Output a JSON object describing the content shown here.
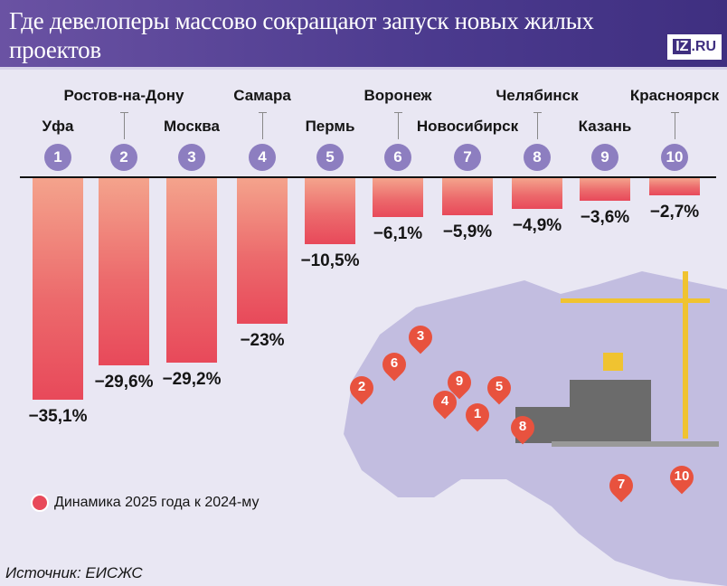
{
  "header": {
    "title": "Где девелоперы массово сокращают запуск новых жилых проектов",
    "logo": {
      "mark": "IZ",
      "suffix": ".RU"
    }
  },
  "legend": {
    "label": "Динамика 2025 года к 2024-му",
    "color": "#e8495a"
  },
  "source": "Источник: ЕИСЖС",
  "colors": {
    "header_bg": "#4b3a8e",
    "bar": "#e8495a",
    "badge": "#8d7ec0",
    "pin": "#e8523e",
    "background": "#e9e7f3"
  },
  "chart_data": {
    "type": "bar",
    "title": "Где девелоперы массово сокращают запуск новых жилых проектов",
    "categories": [
      "Уфа",
      "Ростов-на-Дону",
      "Москва",
      "Самара",
      "Пермь",
      "Воронеж",
      "Новосибирск",
      "Челябинск",
      "Казань",
      "Красноярск"
    ],
    "ranks": [
      "1",
      "2",
      "3",
      "4",
      "5",
      "6",
      "7",
      "8",
      "9",
      "10"
    ],
    "values": [
      -35.1,
      -29.6,
      -29.2,
      -23,
      -10.5,
      -6.1,
      -5.9,
      -4.9,
      -3.6,
      -2.7
    ],
    "labels": [
      "−35,1%",
      "−29,6%",
      "−29,2%",
      "−23%",
      "−10,5%",
      "−6,1%",
      "−5,9%",
      "−4,9%",
      "−3,6%",
      "−2,7%"
    ],
    "series_name": "Динамика 2025 года к 2024-му",
    "xlabel": "",
    "ylabel": "%",
    "ylim": [
      -36,
      0
    ],
    "grid": false,
    "legend_position": "bottom-left"
  },
  "map_pins": [
    "3",
    "6",
    "2",
    "9",
    "4",
    "5",
    "1",
    "8",
    "7",
    "10"
  ]
}
